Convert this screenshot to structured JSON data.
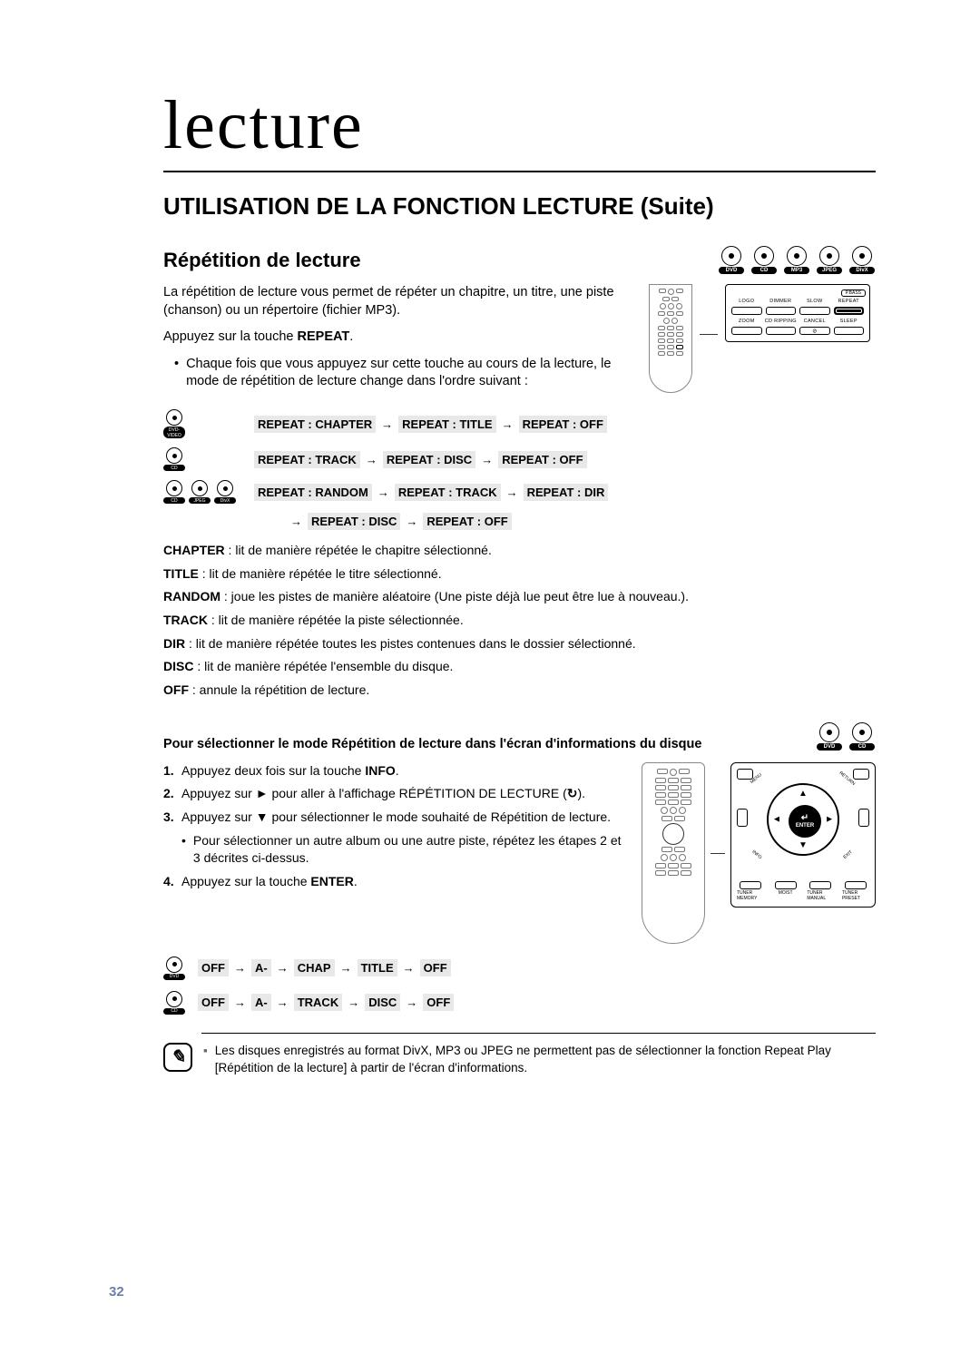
{
  "chapter_title": "lecture",
  "section_title": "UTILISATION DE LA FONCTION LECTURE (Suite)",
  "subsection_title": "Répétition de lecture",
  "badges_top": [
    "DVD",
    "CD",
    "MP3",
    "JPEG",
    "DivX"
  ],
  "intro": {
    "p1": "La répétition de lecture vous permet de répéter un chapitre, un titre, une piste (chanson) ou un répertoire (fichier MP3).",
    "instr_label": "Appuyez sur la touche ",
    "instr_key": "REPEAT",
    "instr_after": ".",
    "bullet": "Chaque fois que vous appuyez sur cette touche au cours de la lecture, le mode de répétition de lecture change dans l'ordre suivant :"
  },
  "callout1": {
    "top_pill": "P.BASS",
    "row1_labels": [
      "LOGO",
      "DIMMER",
      "SLOW",
      "REPEAT"
    ],
    "row2_labels": [
      "ZOOM",
      "CD RIPPING",
      "CANCEL",
      "SLEEP"
    ],
    "highlight_idx": 3
  },
  "sequences": [
    {
      "badges": [
        "DVD-VIDEO"
      ],
      "parts": [
        "REPEAT : CHAPTER",
        "REPEAT : TITLE",
        "REPEAT : OFF"
      ]
    },
    {
      "badges": [
        "CD"
      ],
      "parts": [
        "REPEAT : TRACK",
        "REPEAT : DISC",
        "REPEAT : OFF"
      ]
    },
    {
      "badges": [
        "CD",
        "JPEG",
        "DivX"
      ],
      "parts": [
        "REPEAT : RANDOM",
        "REPEAT : TRACK",
        "REPEAT : DIR"
      ],
      "cont": [
        "REPEAT : DISC",
        "REPEAT : OFF"
      ]
    }
  ],
  "defs": [
    {
      "term": "CHAPTER",
      "text": " : lit de manière répétée le chapitre sélectionné."
    },
    {
      "term": "TITLE",
      "text": " : lit de manière répétée le titre sélectionné."
    },
    {
      "term": "RANDOM",
      "text": " : joue les pistes de manière aléatoire (Une piste déjà lue peut être lue à nouveau.)."
    },
    {
      "term": "TRACK",
      "text": " : lit de manière répétée la piste sélectionnée."
    },
    {
      "term": "DIR",
      "text": " : lit de manière répétée toutes les pistes contenues dans le dossier sélectionné."
    },
    {
      "term": "DISC",
      "text": " : lit de manière répétée l'ensemble du disque."
    },
    {
      "term": "OFF",
      "text": " : annule la répétition de lecture."
    }
  ],
  "sub2": {
    "title": "Pour sélectionner le mode Répétition de lecture dans l'écran d'informations du disque",
    "badges": [
      "DVD",
      "CD"
    ]
  },
  "steps": [
    {
      "n": "1.",
      "text_before": "Appuyez deux fois sur la touche ",
      "bold": "INFO",
      "text_after": "."
    },
    {
      "n": "2.",
      "text_before": "Appuyez sur ► pour aller à l'affichage RÉPÉTITION DE LECTURE (",
      "icon": "↻",
      "text_after": ")."
    },
    {
      "n": "3.",
      "text_before": "Appuyez sur ▼ pour sélectionner le mode souhaité de Répétition de lecture.",
      "bold": "",
      "text_after": "",
      "sub": "Pour sélectionner un autre album ou une autre piste, répétez les étapes 2 et 3 décrites ci-dessus."
    },
    {
      "n": "4.",
      "text_before": "Appuyez sur la touche ",
      "bold": "ENTER",
      "text_after": "."
    }
  ],
  "nav_panel": {
    "corners": [
      "",
      ""
    ],
    "diag": [
      "MENU",
      "RETURN",
      "INFO",
      "EXIT"
    ],
    "center_top": "↵",
    "center_label": "ENTER",
    "bottom": [
      "TUNER MEMORY",
      "MO/ST",
      "TUNER MANUAL",
      "TUNER PRESET"
    ]
  },
  "sequences2": [
    {
      "badge": "DVD",
      "parts": [
        "OFF",
        "A-",
        "CHAP",
        "TITLE",
        "OFF"
      ]
    },
    {
      "badge": "CD",
      "parts": [
        "OFF",
        "A-",
        "TRACK",
        "DISC",
        "OFF"
      ]
    }
  ],
  "note": "Les disques enregistrés au format DivX, MP3 ou JPEG ne permettent pas de sélectionner la fonction Repeat Play [Répétition de la lecture] à partir de l'écran d'informations.",
  "page_number": "32"
}
